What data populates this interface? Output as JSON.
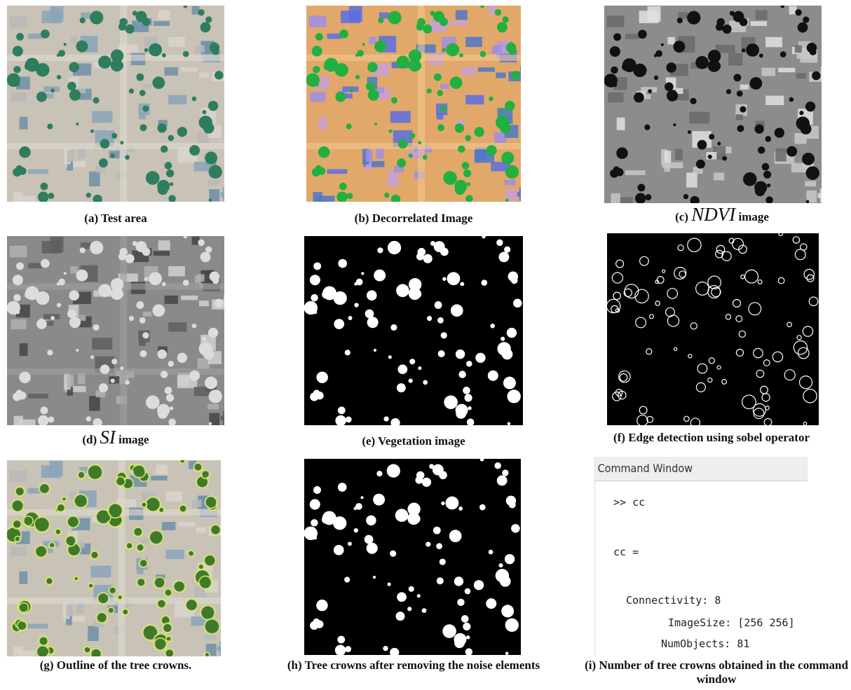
{
  "panels": [
    {
      "label": "(a)",
      "caption": "Test area"
    },
    {
      "label": "(b)",
      "caption": "Decorrelated Image"
    },
    {
      "label": "(c)",
      "symbol": "NDVI",
      "caption": "image"
    },
    {
      "label": "(d)",
      "symbol": "SI",
      "caption": "image"
    },
    {
      "label": "(e)",
      "caption": "Vegetation image"
    },
    {
      "label": "(f)",
      "caption": "Edge detection using sobel operator"
    },
    {
      "label": "(g)",
      "caption": "Outline of the tree crowns."
    },
    {
      "label": "(h)",
      "caption": "Tree crowns after removing the noise elements"
    },
    {
      "label": "(i)",
      "caption": "Number of tree crowns obtained in the command window"
    }
  ],
  "command_window": {
    "title": "Command Window",
    "lines": [
      ">> cc",
      "cc =",
      "Connectivity: 8",
      "ImageSize: [256 256]",
      "NumObjects: 81"
    ]
  }
}
